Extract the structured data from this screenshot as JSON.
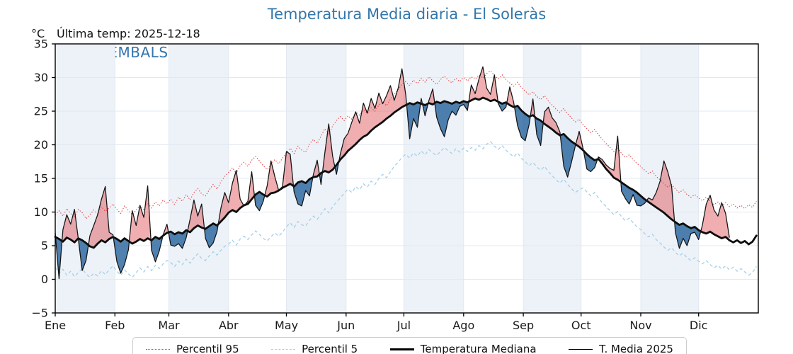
{
  "header": {
    "title": "Temperatura Media diaria - El Soleràs",
    "y_unit_label": "°C",
    "last_temp_label": "Última temp: 2025-12-18",
    "watermark": "WWW.EMBALSES.NET"
  },
  "legend": {
    "items": [
      {
        "label": "Percentil 95",
        "swatch": "dotted-red"
      },
      {
        "label": "Percentil 5",
        "swatch": "dashed-lightblue"
      },
      {
        "label": "Temperatura Mediana",
        "swatch": "thick-black"
      },
      {
        "label": "T. Media 2025",
        "swatch": "thin-black"
      }
    ]
  },
  "colors": {
    "title": "#3377aa",
    "watermark": "#3175ad",
    "band": "#edf2f8",
    "grid": "#e2e8f0",
    "p95_line": "#e04545",
    "p5_line": "#a8d0e6",
    "median_line": "#0d0d0d",
    "t2025_line": "#131313",
    "fill_above": "rgba(220,62,66,0.42)",
    "fill_below": "rgba(31,94,152,0.78)",
    "axis": "#000000",
    "tick_label": "#1a1a1a"
  },
  "chart_data": {
    "type": "line",
    "title": "Temperatura Media diaria - El Soleràs",
    "x_axis": {
      "tick_labels": [
        "Ene",
        "Feb",
        "Mar",
        "Abr",
        "May",
        "Jun",
        "Jul",
        "Ago",
        "Sep",
        "Oct",
        "Nov",
        "Dic"
      ],
      "month_start_days": [
        1,
        32,
        60,
        91,
        121,
        152,
        182,
        213,
        244,
        274,
        305,
        335,
        366
      ],
      "range_days": [
        1,
        365
      ],
      "shaded_months_alternate_from": "Ene"
    },
    "y_axis": {
      "label": "°C",
      "ticks": [
        35,
        30,
        25,
        20,
        15,
        10,
        5,
        0,
        -5
      ],
      "range": [
        -5,
        35
      ],
      "grid": true
    },
    "sampling": {
      "start_day": 1,
      "step_days": 2
    },
    "series": [
      {
        "name": "Percentil 95",
        "style": "dotted",
        "color_key": "p95_line",
        "values": [
          9.6,
          10.2,
          9.4,
          10.5,
          9.8,
          9.2,
          10.4,
          9.9,
          9.0,
          9.6,
          10.3,
          9.7,
          10.8,
          10.1,
          10.6,
          11.2,
          10.4,
          9.8,
          10.9,
          10.2,
          9.6,
          10.3,
          11.0,
          10.4,
          11.3,
          10.6,
          11.5,
          10.9,
          11.8,
          11.2,
          11.9,
          11.1,
          12.2,
          11.6,
          12.6,
          11.8,
          12.9,
          13.5,
          12.7,
          12.4,
          13.3,
          14.1,
          13.4,
          14.5,
          15.3,
          15.9,
          16.6,
          15.7,
          16.9,
          17.4,
          16.8,
          17.7,
          18.3,
          17.6,
          16.9,
          16.3,
          17.1,
          17.8,
          17.2,
          18.0,
          18.8,
          19.5,
          18.7,
          19.8,
          19.2,
          18.9,
          20.1,
          20.8,
          20.2,
          21.3,
          22.4,
          21.6,
          22.8,
          23.6,
          24.2,
          23.6,
          24.3,
          23.8,
          24.9,
          24.4,
          25.2,
          24.7,
          25.5,
          25.0,
          25.9,
          26.4,
          25.8,
          26.8,
          27.5,
          28.2,
          29.0,
          29.4,
          28.8,
          29.6,
          29.1,
          29.9,
          29.3,
          30.1,
          29.5,
          29.0,
          29.7,
          30.2,
          29.6,
          29.2,
          29.9,
          29.4,
          30.0,
          29.5,
          30.1,
          29.7,
          30.4,
          29.9,
          30.6,
          31.0,
          30.3,
          29.8,
          30.4,
          29.7,
          29.2,
          28.7,
          29.3,
          28.5,
          28.0,
          27.4,
          27.9,
          27.2,
          26.7,
          27.3,
          26.5,
          25.9,
          25.3,
          24.8,
          25.4,
          24.6,
          24.0,
          23.4,
          23.8,
          23.0,
          22.4,
          21.8,
          22.3,
          21.5,
          20.8,
          20.2,
          19.6,
          19.0,
          19.5,
          18.7,
          18.1,
          18.5,
          17.8,
          17.2,
          16.8,
          16.2,
          15.7,
          16.1,
          15.3,
          14.8,
          14.2,
          13.7,
          14.1,
          13.4,
          12.9,
          13.3,
          12.6,
          12.2,
          12.6,
          12.1,
          11.7,
          12.2,
          11.6,
          11.1,
          11.5,
          10.9,
          11.4,
          10.8,
          11.2,
          10.6,
          11.0,
          10.5,
          11.1,
          10.7,
          11.6
        ]
      },
      {
        "name": "Percentil 5",
        "style": "dashed",
        "color_key": "p5_line",
        "values": [
          1.8,
          0.9,
          1.5,
          0.6,
          1.2,
          0.4,
          1.0,
          1.6,
          0.8,
          0.3,
          0.9,
          0.5,
          1.3,
          0.7,
          1.4,
          2.0,
          1.2,
          0.6,
          1.4,
          0.8,
          0.3,
          1.0,
          1.7,
          1.1,
          1.9,
          1.3,
          2.1,
          1.6,
          2.3,
          2.8,
          2.5,
          1.9,
          2.7,
          2.2,
          3.0,
          2.4,
          3.2,
          3.8,
          3.1,
          2.8,
          3.5,
          4.1,
          3.6,
          4.3,
          4.9,
          5.2,
          5.8,
          5.1,
          6.0,
          6.4,
          5.9,
          6.6,
          7.2,
          6.7,
          6.1,
          5.7,
          6.3,
          6.9,
          6.4,
          7.0,
          7.8,
          8.4,
          7.7,
          8.6,
          8.1,
          7.9,
          8.8,
          9.4,
          8.9,
          9.7,
          10.5,
          9.9,
          10.8,
          11.5,
          12.1,
          12.8,
          13.4,
          12.9,
          13.8,
          13.3,
          14.2,
          13.7,
          14.6,
          14.1,
          15.0,
          15.6,
          15.1,
          16.0,
          16.8,
          17.4,
          18.1,
          18.6,
          18.0,
          18.8,
          18.3,
          19.1,
          18.5,
          19.3,
          18.8,
          18.4,
          19.0,
          19.6,
          19.1,
          18.7,
          19.4,
          18.9,
          19.5,
          19.0,
          19.6,
          19.2,
          19.9,
          19.4,
          20.1,
          20.5,
          19.8,
          19.3,
          19.9,
          19.2,
          18.7,
          18.2,
          18.8,
          18.0,
          17.5,
          16.9,
          17.4,
          16.7,
          16.2,
          16.8,
          16.0,
          15.4,
          14.8,
          14.3,
          14.9,
          14.1,
          13.5,
          12.9,
          13.3,
          13.6,
          13.0,
          12.4,
          12.9,
          12.1,
          11.4,
          10.8,
          10.2,
          9.6,
          10.1,
          9.3,
          8.7,
          9.1,
          8.4,
          7.8,
          7.4,
          6.8,
          6.3,
          6.7,
          5.9,
          5.4,
          4.8,
          4.3,
          4.7,
          4.0,
          3.5,
          3.9,
          3.2,
          2.8,
          3.2,
          2.7,
          2.3,
          2.8,
          2.2,
          1.7,
          2.1,
          1.5,
          2.0,
          1.4,
          1.8,
          1.2,
          1.6,
          1.1,
          0.6,
          1.0,
          1.9
        ]
      },
      {
        "name": "Temperatura Mediana",
        "style": "solid-thick",
        "color_key": "median_line",
        "values": [
          6.3,
          6.0,
          5.6,
          6.2,
          5.9,
          5.5,
          6.1,
          5.8,
          5.4,
          4.9,
          4.7,
          5.3,
          5.8,
          5.5,
          6.0,
          6.3,
          6.0,
          5.6,
          6.1,
          5.7,
          5.3,
          5.6,
          6.0,
          5.7,
          6.1,
          5.8,
          6.3,
          6.0,
          6.5,
          6.9,
          7.1,
          6.7,
          7.0,
          6.8,
          7.3,
          7.0,
          7.6,
          8.0,
          7.7,
          7.5,
          7.9,
          8.3,
          8.0,
          8.6,
          9.2,
          9.9,
          10.3,
          10.0,
          10.6,
          11.0,
          11.2,
          11.9,
          12.6,
          13.0,
          12.6,
          12.3,
          12.8,
          12.9,
          13.2,
          13.6,
          13.9,
          14.2,
          13.8,
          14.4,
          14.6,
          14.3,
          14.9,
          15.2,
          15.3,
          15.8,
          16.1,
          15.9,
          16.3,
          17.0,
          17.8,
          18.4,
          19.1,
          19.6,
          20.1,
          20.7,
          21.2,
          21.5,
          22.1,
          22.6,
          23.0,
          23.4,
          23.9,
          24.3,
          24.8,
          25.2,
          25.6,
          25.9,
          26.2,
          26.0,
          26.3,
          26.1,
          25.9,
          26.2,
          26.0,
          26.4,
          26.2,
          26.5,
          26.3,
          26.1,
          26.4,
          26.2,
          26.5,
          26.3,
          26.6,
          26.9,
          26.7,
          27.0,
          26.8,
          26.5,
          26.7,
          26.4,
          26.1,
          26.3,
          25.9,
          25.6,
          25.8,
          25.1,
          24.6,
          24.2,
          24.4,
          23.9,
          23.6,
          23.1,
          22.7,
          22.3,
          21.8,
          21.4,
          21.6,
          21.0,
          20.5,
          20.1,
          19.7,
          19.2,
          18.6,
          18.1,
          17.7,
          17.9,
          17.2,
          16.4,
          15.8,
          15.1,
          14.8,
          14.4,
          14.0,
          13.6,
          13.3,
          12.9,
          12.4,
          11.9,
          11.5,
          11.1,
          10.7,
          10.3,
          9.9,
          9.4,
          8.9,
          8.5,
          8.1,
          8.3,
          7.9,
          7.6,
          7.8,
          7.3,
          7.0,
          6.8,
          7.1,
          6.7,
          6.4,
          6.1,
          6.3,
          5.8,
          5.5,
          5.8,
          5.4,
          5.7,
          5.2,
          5.6,
          6.5
        ]
      },
      {
        "name": "T. Media 2025",
        "style": "solid-thin",
        "color_key": "t2025_line",
        "ends_on_day": 351,
        "values": [
          6.9,
          0.1,
          7.4,
          9.6,
          8.2,
          10.4,
          6.0,
          1.3,
          2.8,
          6.5,
          8.0,
          9.6,
          11.9,
          13.8,
          7.0,
          6.6,
          2.6,
          0.9,
          2.2,
          4.4,
          10.2,
          8.0,
          11.0,
          9.2,
          13.9,
          4.3,
          2.6,
          4.2,
          6.6,
          8.2,
          5.1,
          4.9,
          5.3,
          4.6,
          6.2,
          8.9,
          11.8,
          9.4,
          11.2,
          6.1,
          4.7,
          5.4,
          7.1,
          10.6,
          12.9,
          11.4,
          14.3,
          16.2,
          11.9,
          10.9,
          11.6,
          16.0,
          11.0,
          10.2,
          11.6,
          13.9,
          17.6,
          15.3,
          13.2,
          13.8,
          19.0,
          18.6,
          13.0,
          11.2,
          10.9,
          13.2,
          12.4,
          15.6,
          17.7,
          14.1,
          18.9,
          23.1,
          18.3,
          15.6,
          18.6,
          20.9,
          21.7,
          23.4,
          24.9,
          23.2,
          26.2,
          24.7,
          26.9,
          25.4,
          27.7,
          26.1,
          27.3,
          28.8,
          26.6,
          28.4,
          31.3,
          27.4,
          20.9,
          23.9,
          22.6,
          26.9,
          24.3,
          26.6,
          28.3,
          24.1,
          22.4,
          21.2,
          23.7,
          25.0,
          24.4,
          25.7,
          26.0,
          25.1,
          28.9,
          27.6,
          29.8,
          31.6,
          28.4,
          27.5,
          30.4,
          26.1,
          25.0,
          25.6,
          28.6,
          26.3,
          22.9,
          21.1,
          20.6,
          23.0,
          26.8,
          21.5,
          19.9,
          24.9,
          25.6,
          24.0,
          23.3,
          21.9,
          16.8,
          15.2,
          17.4,
          19.8,
          22.0,
          19.5,
          16.4,
          16.0,
          16.6,
          18.2,
          17.8,
          17.0,
          16.5,
          16.2,
          21.3,
          13.1,
          12.0,
          11.2,
          12.6,
          11.0,
          10.9,
          11.3,
          12.1,
          11.8,
          12.9,
          14.6,
          17.6,
          16.0,
          13.8,
          6.9,
          4.6,
          6.1,
          5.0,
          6.8,
          7.0,
          5.9,
          8.1,
          11.2,
          12.5,
          10.3,
          9.4,
          11.4,
          9.8,
          6.2
        ]
      }
    ],
    "fills": [
      {
        "between": [
          "T. Media 2025",
          "Temperatura Mediana"
        ],
        "when": "above",
        "color_key": "fill_above"
      },
      {
        "between": [
          "T. Media 2025",
          "Temperatura Mediana"
        ],
        "when": "below",
        "color_key": "fill_below"
      }
    ]
  }
}
